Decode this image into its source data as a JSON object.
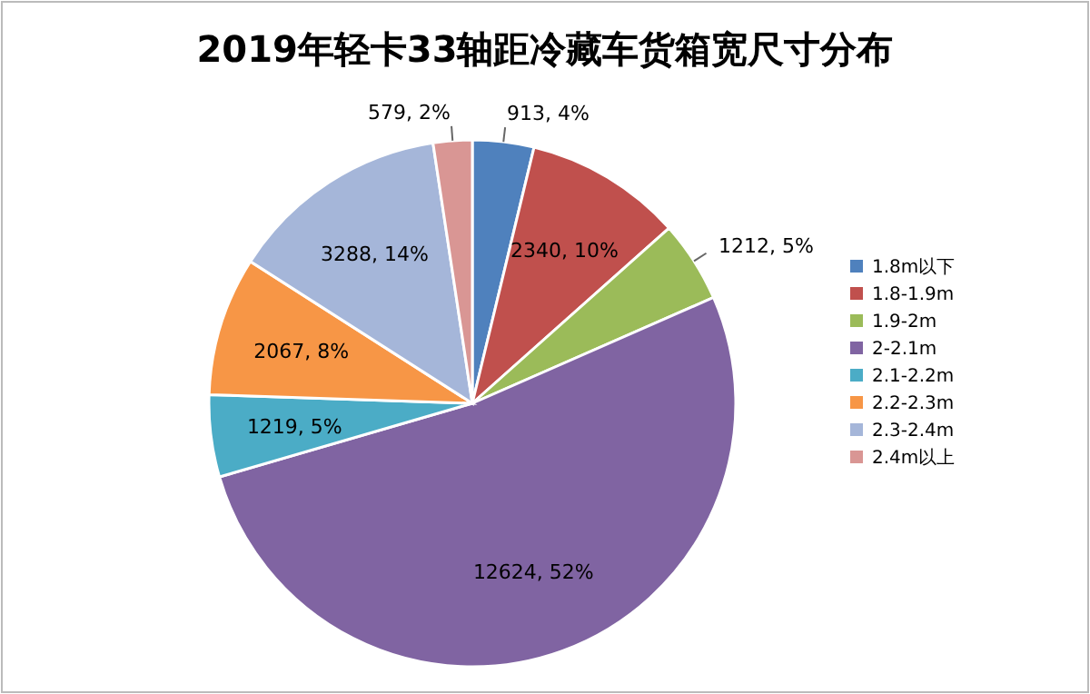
{
  "chart_data": {
    "type": "pie",
    "title": "2019年轻卡33轴距冷藏车货箱宽尺寸分布",
    "categories": [
      "1.8m以下",
      "1.8-1.9m",
      "1.9-2m",
      "2-2.1m",
      "2.1-2.2m",
      "2.2-2.3m",
      "2.3-2.4m",
      "2.4m以上"
    ],
    "values": [
      913,
      2340,
      1212,
      12624,
      1219,
      2067,
      3288,
      579
    ],
    "value_labels": [
      "913, 4%",
      "2340, 10%",
      "1212, 5%",
      "12624, 52%",
      "1219, 5%",
      "2067, 8%",
      "3288, 14%",
      "579, 2%"
    ],
    "colors": [
      "#4f81bd",
      "#c0504d",
      "#9bbb59",
      "#8064a2",
      "#4bacc6",
      "#f79646",
      "#a5b6d9",
      "#d99694"
    ],
    "legend": "right"
  }
}
